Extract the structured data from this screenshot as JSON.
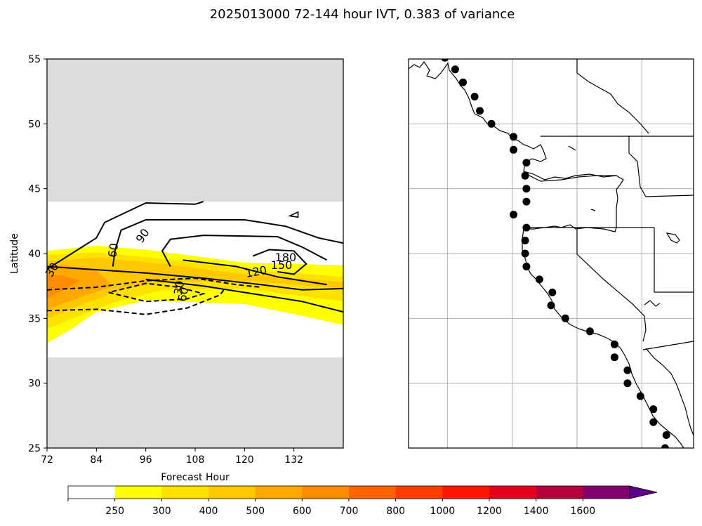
{
  "chart_data": [
    {
      "type": "contour",
      "title": "2025013000 72-144 hour IVT, 0.383 of variance",
      "xlabel": "Forecast Hour",
      "ylabel": "Latitude",
      "xlim": [
        72,
        144
      ],
      "ylim": [
        25,
        55
      ],
      "xticks": [
        72,
        84,
        96,
        108,
        120,
        132
      ],
      "yticks": [
        25,
        30,
        35,
        40,
        45,
        50,
        55
      ],
      "masked_regions": [
        {
          "description": "gray (no data)",
          "lat_range": [
            44,
            55
          ]
        },
        {
          "description": "gray (no data)",
          "lat_range": [
            25,
            32
          ]
        }
      ],
      "contour_labels": [
        "30",
        "60",
        "90",
        "120",
        "150",
        "180",
        "30",
        "60"
      ],
      "solid_contours": [
        {
          "level": 30,
          "points": [
            [
              72,
              38.8
            ],
            [
              78,
              40
            ],
            [
              84,
              41.2
            ],
            [
              86,
              42.4
            ],
            [
              90,
              43
            ],
            [
              96,
              43.9
            ],
            [
              108,
              43.8
            ],
            [
              110,
              44
            ]
          ]
        },
        {
          "level": 60,
          "points": [
            [
              88,
              39
            ],
            [
              88.5,
              40.2
            ],
            [
              90,
              41.8
            ],
            [
              96,
              42.6
            ],
            [
              120,
              42.6
            ],
            [
              130,
              42.1
            ],
            [
              138,
              41.2
            ],
            [
              144,
              40.8
            ]
          ]
        },
        {
          "level": 90,
          "points": [
            [
              102,
              39
            ],
            [
              100,
              40.2
            ],
            [
              102,
              41.1
            ],
            [
              110,
              41.4
            ],
            [
              128,
              41.3
            ],
            [
              134,
              40.5
            ],
            [
              140,
              39.5
            ]
          ]
        },
        {
          "level": 120,
          "points": [
            [
              72,
              39
            ],
            [
              96,
              38.5
            ],
            [
              110,
              38.1
            ],
            [
              124,
              37.6
            ],
            [
              134,
              37.2
            ],
            [
              144,
              37.3
            ]
          ]
        },
        {
          "level": 150,
          "points": [
            [
              96,
              38
            ],
            [
              110,
              37.5
            ],
            [
              124,
              36.8
            ],
            [
              134,
              36.3
            ],
            [
              144,
              35.5
            ]
          ]
        },
        {
          "level": 180,
          "points": [
            [
              105,
              39.5
            ],
            [
              118,
              39
            ],
            [
              128,
              38.2
            ],
            [
              136,
              37.8
            ],
            [
              140,
              37.6
            ]
          ]
        },
        {
          "level": 210,
          "points": [
            [
              122,
              39.8
            ],
            [
              126,
              40.3
            ],
            [
              132,
              40.2
            ],
            [
              135,
              39.2
            ],
            [
              132,
              38.4
            ],
            [
              128,
              38.6
            ]
          ]
        }
      ],
      "dashed_contours": [
        {
          "level": -30,
          "points": [
            [
              72,
              37.2
            ],
            [
              84,
              37.4
            ],
            [
              96,
              37.9
            ],
            [
              108,
              38.1
            ],
            [
              118,
              37.6
            ],
            [
              124,
              37.4
            ]
          ]
        },
        {
          "level": -60,
          "points": [
            [
              72,
              35.6
            ],
            [
              84,
              35.7
            ],
            [
              96,
              35.3
            ],
            [
              106,
              35.8
            ],
            [
              114,
              36.8
            ],
            [
              115,
              37.2
            ]
          ]
        },
        {
          "level": -90,
          "points": [
            [
              87,
              37
            ],
            [
              96,
              36.3
            ],
            [
              106,
              36.5
            ],
            [
              110,
              36.9
            ],
            [
              104,
              37.4
            ],
            [
              96,
              37.7
            ],
            [
              87,
              37
            ]
          ]
        }
      ],
      "filled_levels": [
        {
          "level": 250,
          "color": "#ffff00",
          "points": [
            [
              72,
              33.1
            ],
            [
              78,
              34.2
            ],
            [
              84,
              35.5
            ],
            [
              96,
              36.4
            ],
            [
              120,
              36.1
            ],
            [
              134,
              35.2
            ],
            [
              144,
              34.5
            ],
            [
              144,
              39.1
            ],
            [
              120,
              39.3
            ],
            [
              96,
              40.3
            ],
            [
              84,
              40.6
            ],
            [
              72,
              40.2
            ]
          ]
        },
        {
          "level": 300,
          "color": "#ffe100",
          "points": [
            [
              72,
              34.2
            ],
            [
              80,
              35.2
            ],
            [
              88,
              36.2
            ],
            [
              100,
              37.2
            ],
            [
              120,
              37.3
            ],
            [
              144,
              36.3
            ],
            [
              144,
              38.2
            ],
            [
              120,
              38.8
            ],
            [
              100,
              39.6
            ],
            [
              84,
              40.1
            ],
            [
              72,
              39.9
            ]
          ]
        },
        {
          "level": 400,
          "color": "#ffc800",
          "points": [
            [
              72,
              35
            ],
            [
              80,
              36
            ],
            [
              90,
              37.2
            ],
            [
              100,
              37.8
            ],
            [
              120,
              37.9
            ],
            [
              144,
              37.3
            ],
            [
              144,
              37.8
            ],
            [
              120,
              38.4
            ],
            [
              100,
              39.2
            ],
            [
              84,
              39.7
            ],
            [
              72,
              39.4
            ]
          ]
        },
        {
          "level": 500,
          "color": "#ffa800",
          "points": [
            [
              72,
              35.7
            ],
            [
              80,
              36.6
            ],
            [
              88,
              37.5
            ],
            [
              84,
              38.7
            ],
            [
              76,
              39.1
            ],
            [
              72,
              39
            ]
          ]
        },
        {
          "level": 600,
          "color": "#ff8c00",
          "points": [
            [
              72,
              36.5
            ],
            [
              76,
              37.2
            ],
            [
              80,
              37.9
            ],
            [
              76,
              38.3
            ],
            [
              72,
              38.4
            ]
          ]
        }
      ]
    },
    {
      "type": "map",
      "region": "West coast of North America",
      "gridlines": true,
      "station_markers": [
        [
          -136.7,
          55.1
        ],
        [
          -135.9,
          54.2
        ],
        [
          -135.3,
          53.2
        ],
        [
          -134.4,
          52.1
        ],
        [
          -134.0,
          51.0
        ],
        [
          -133.1,
          50.0
        ],
        [
          -131.4,
          49.0
        ],
        [
          -131.4,
          48.0
        ],
        [
          -130.4,
          47.0
        ],
        [
          -130.5,
          46.0
        ],
        [
          -130.4,
          45.0
        ],
        [
          -130.4,
          44.0
        ],
        [
          -131.4,
          43.0
        ],
        [
          -130.4,
          42.0
        ],
        [
          -130.5,
          41.0
        ],
        [
          -130.5,
          40.0
        ],
        [
          -130.4,
          39.0
        ],
        [
          -129.4,
          38.0
        ],
        [
          -128.4,
          37.0
        ],
        [
          -128.5,
          36.0
        ],
        [
          -127.4,
          35.0
        ],
        [
          -125.5,
          34.0
        ],
        [
          -123.6,
          33.0
        ],
        [
          -123.6,
          32.0
        ],
        [
          -122.6,
          31.0
        ],
        [
          -122.6,
          30.0
        ],
        [
          -121.6,
          29.0
        ],
        [
          -120.6,
          28.0
        ],
        [
          -120.6,
          27.0
        ],
        [
          -119.6,
          26.0
        ],
        [
          -119.7,
          25.0
        ]
      ]
    },
    {
      "type": "colorbar",
      "ticks": [
        "250",
        "300",
        "400",
        "500",
        "600",
        "700",
        "800",
        "1000",
        "1200",
        "1400",
        "1600"
      ],
      "colors": [
        "#ffffff",
        "#ffff00",
        "#ffe100",
        "#ffc800",
        "#ffa800",
        "#ff8c00",
        "#ff6400",
        "#ff3c00",
        "#ff1400",
        "#e6001e",
        "#b4003c",
        "#82006e",
        "#5a008c"
      ]
    }
  ]
}
